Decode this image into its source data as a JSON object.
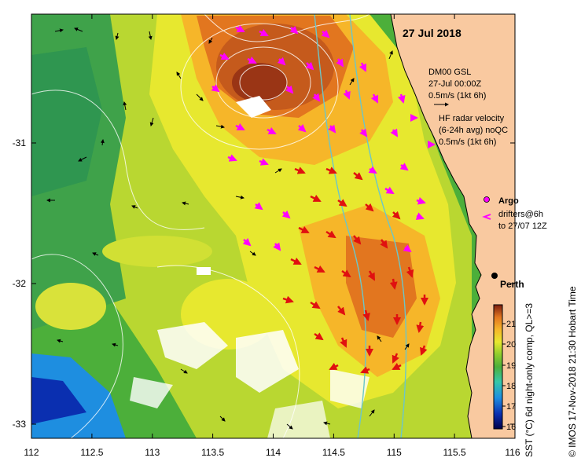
{
  "title": "27 Jul 2018",
  "lon_ticks": [
    "112",
    "112.5",
    "113",
    "113.5",
    "114",
    "114.5",
    "115",
    "115.5",
    "116"
  ],
  "lat_ticks": [
    "-31",
    "-32",
    "-33"
  ],
  "legend": {
    "gsl": {
      "line1": "DM00 GSL",
      "line2": "27-Jul 00:00Z",
      "line3": "0.5m/s (1kt 6h)"
    },
    "hf": {
      "line1": "HF radar velocity",
      "line2": "(6-24h avg) noQC",
      "line3": "0.5m/s (1kt 6h)"
    },
    "argo": "Argo",
    "drifters": {
      "line1": "drifters@6h",
      "line2": "to 27/07 12Z"
    }
  },
  "city": "Perth",
  "colorbar": {
    "labels": [
      "21",
      "20",
      "19",
      "18",
      "17",
      "16"
    ],
    "title": "SST (°C) 6d night-only comp, QL>=3"
  },
  "credit": "© IMOS 17-Nov-2018 21:30 Hobart Time",
  "colors": {
    "land": "#f9c9a0",
    "hf_arrow": "#ff00ff",
    "gsl_arrow": "#000000",
    "red_arrow": "#e01010",
    "coast": "#000000"
  },
  "colormap": [
    "#00004a",
    "#0a2fb0",
    "#1e8ee0",
    "#37c7a8",
    "#4caf3a",
    "#8fcd2e",
    "#e7e82f",
    "#f6b629",
    "#e2761f",
    "#b3451a",
    "#7a1d10"
  ]
}
